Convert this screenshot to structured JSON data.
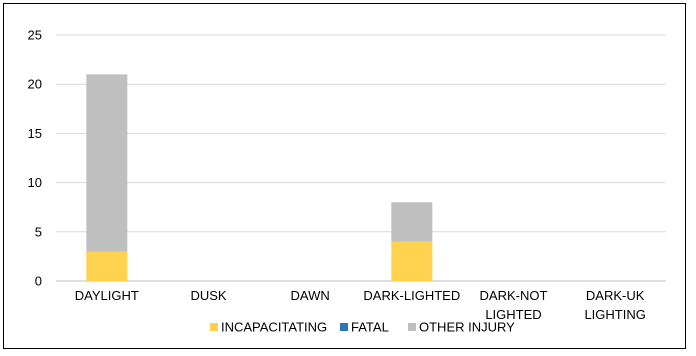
{
  "chart_data": {
    "type": "bar",
    "stacked": true,
    "categories": [
      [
        "DAYLIGHT"
      ],
      [
        "DUSK"
      ],
      [
        "DAWN"
      ],
      [
        "DARK-LIGHTED"
      ],
      [
        "DARK-NOT",
        "LIGHTED"
      ],
      [
        "DARK-UK",
        "LIGHTING"
      ]
    ],
    "series": [
      {
        "name": "INCAPACITATING",
        "color": "#FFD24F",
        "values": [
          3,
          0,
          0,
          4,
          0,
          0
        ]
      },
      {
        "name": "FATAL",
        "color": "#2E75B6",
        "values": [
          0,
          0,
          0,
          0,
          0,
          0
        ]
      },
      {
        "name": "OTHER INJURY",
        "color": "#BFBFBF",
        "values": [
          18,
          0,
          0,
          4,
          0,
          0
        ]
      }
    ],
    "ylim": [
      0,
      25
    ],
    "yticks": [
      0,
      5,
      10,
      15,
      20,
      25
    ],
    "grid": true,
    "legend_position": "bottom"
  }
}
